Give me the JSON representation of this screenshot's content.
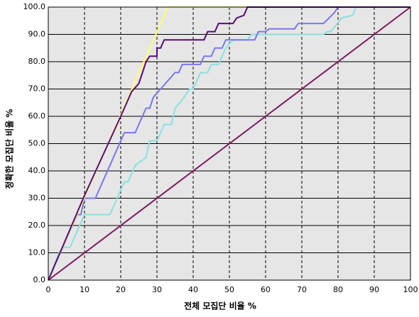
{
  "chart_data": {
    "type": "line",
    "xlabel": "전체 모집단 비율 %",
    "ylabel": "정확한 모집단 비율 %",
    "xlim": [
      0,
      100
    ],
    "ylim": [
      0,
      100
    ],
    "xticks": [
      0,
      10,
      20,
      30,
      40,
      50,
      60,
      70,
      80,
      90,
      100
    ],
    "yticks": [
      {
        "value": 0,
        "label": "0.0"
      },
      {
        "value": 10,
        "label": "10.0"
      },
      {
        "value": 20,
        "label": "20.0"
      },
      {
        "value": 30,
        "label": "30.0"
      },
      {
        "value": 40,
        "label": "40.0"
      },
      {
        "value": 50,
        "label": "50.0"
      },
      {
        "value": 60,
        "label": "60.0"
      },
      {
        "value": 70,
        "label": "70.0"
      },
      {
        "value": 80,
        "label": "80.0"
      },
      {
        "value": 90,
        "label": "90.0"
      },
      {
        "value": 100,
        "label": "100.0"
      }
    ],
    "grid": true,
    "series": [
      {
        "color": "#88e0e0",
        "x": [
          0,
          3,
          4,
          6,
          8,
          10,
          17,
          19,
          20,
          21,
          22,
          24,
          27,
          28,
          30,
          31,
          32,
          34,
          35,
          37,
          39,
          40,
          42,
          44,
          45,
          47,
          48,
          49,
          51,
          55,
          56,
          76,
          77,
          78,
          81,
          84,
          85,
          100
        ],
        "values": [
          0,
          10,
          12,
          12,
          18,
          24,
          24,
          30,
          33,
          36,
          36,
          42,
          45,
          51,
          51,
          54,
          57,
          57,
          63,
          66,
          70,
          70,
          76,
          76,
          79,
          79,
          82,
          85,
          88,
          88,
          90,
          90,
          91,
          91,
          96,
          97,
          100,
          100
        ]
      },
      {
        "color": "#7878f0",
        "x": [
          0,
          8,
          9,
          10,
          13,
          15,
          17,
          19,
          21,
          24,
          25,
          27,
          28,
          29,
          31,
          33,
          35,
          36,
          37,
          42,
          43,
          45,
          46,
          48,
          49,
          57,
          58,
          60,
          61,
          68,
          69,
          76,
          79,
          80,
          100
        ],
        "values": [
          0,
          24,
          24,
          30,
          30,
          36,
          42,
          48,
          54,
          54,
          57,
          63,
          63,
          67,
          70,
          73,
          76,
          76,
          79,
          79,
          82,
          82,
          85,
          85,
          88,
          88,
          91,
          91,
          92,
          92,
          94,
          94,
          98,
          100,
          100
        ]
      },
      {
        "color": "#ffff66",
        "x": [
          0,
          33,
          100
        ],
        "values": [
          0,
          100,
          100
        ]
      },
      {
        "color": "#5a0a78",
        "x": [
          0,
          10,
          20,
          23,
          25,
          26,
          27,
          28,
          30,
          30,
          31,
          32,
          34,
          43,
          44,
          46,
          47,
          51,
          52,
          54,
          55,
          100
        ],
        "values": [
          0,
          31,
          60,
          69,
          72,
          76,
          80,
          82,
          82,
          85,
          85,
          88,
          88,
          88,
          91,
          91,
          94,
          94,
          96,
          97,
          100,
          100
        ]
      },
      {
        "color": "#801a60",
        "x": [
          0,
          100
        ],
        "values": [
          0,
          100
        ]
      }
    ]
  }
}
